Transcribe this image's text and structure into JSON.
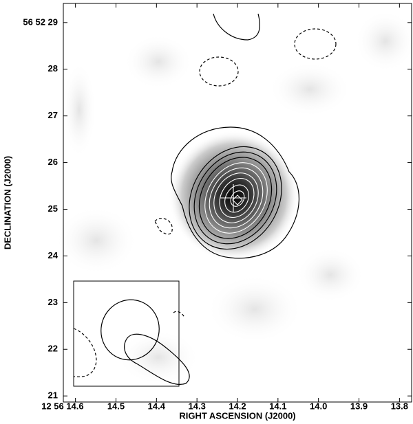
{
  "chart_data": {
    "type": "image",
    "xlabel": "RIGHT ASCENSION (J2000)",
    "ylabel": "DECLINATION (J2000)",
    "xlim": [
      14.63,
      13.77
    ],
    "ylim": [
      20.87,
      29.41
    ],
    "xticks": [
      {
        "value": 14.6,
        "label": "12 56 14.6"
      },
      14.5,
      14.4,
      14.3,
      14.2,
      14.1,
      {
        "value": 14,
        "label": "14.0"
      },
      13.9,
      13.8
    ],
    "yticks": [
      {
        "value": 29,
        "label": "56 52 29"
      },
      28,
      27,
      26,
      25,
      24,
      23,
      22,
      21
    ]
  }
}
